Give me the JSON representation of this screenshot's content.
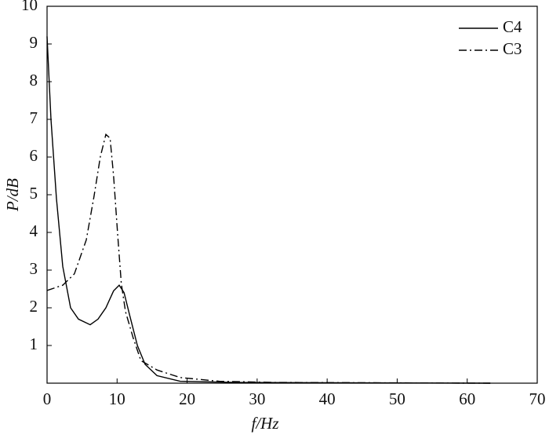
{
  "chart_data": {
    "type": "line",
    "xlabel": "f/Hz",
    "ylabel": "P/dB",
    "xlim": [
      0,
      70
    ],
    "xticks": [
      0,
      10,
      20,
      30,
      40,
      50,
      60,
      70
    ],
    "ylim": [
      0,
      10
    ],
    "yticks": [
      1,
      2,
      3,
      4,
      5,
      6,
      7,
      8,
      9,
      10
    ],
    "legend": "top-right",
    "series": [
      {
        "name": "C4",
        "color": "#000000",
        "dash": "solid",
        "x": [
          0,
          0.56,
          1.34,
          2.24,
          3.36,
          4.48,
          6.16,
          7.28,
          8.4,
          9.5,
          10.3,
          11.0,
          11.8,
          12.9,
          14,
          15.7,
          19,
          27,
          63.3
        ],
        "values": [
          9.2,
          7.0,
          4.9,
          3.1,
          2.0,
          1.7,
          1.55,
          1.7,
          2.0,
          2.45,
          2.6,
          2.4,
          1.8,
          1.0,
          0.5,
          0.2,
          0.05,
          0.02,
          0
        ]
      },
      {
        "name": "C3",
        "color": "#000000",
        "dash": "dashdot",
        "x": [
          0,
          2.24,
          3.9,
          5.6,
          6.7,
          7.6,
          8.4,
          9.0,
          9.5,
          10.1,
          10.6,
          11.2,
          12.3,
          13.4,
          15.7,
          19,
          24.6,
          32.5,
          63.3
        ],
        "values": [
          2.46,
          2.6,
          2.9,
          3.8,
          4.95,
          6.0,
          6.6,
          6.5,
          5.5,
          3.9,
          2.65,
          1.9,
          1.2,
          0.6,
          0.35,
          0.15,
          0.05,
          0.02,
          0
        ]
      }
    ]
  }
}
